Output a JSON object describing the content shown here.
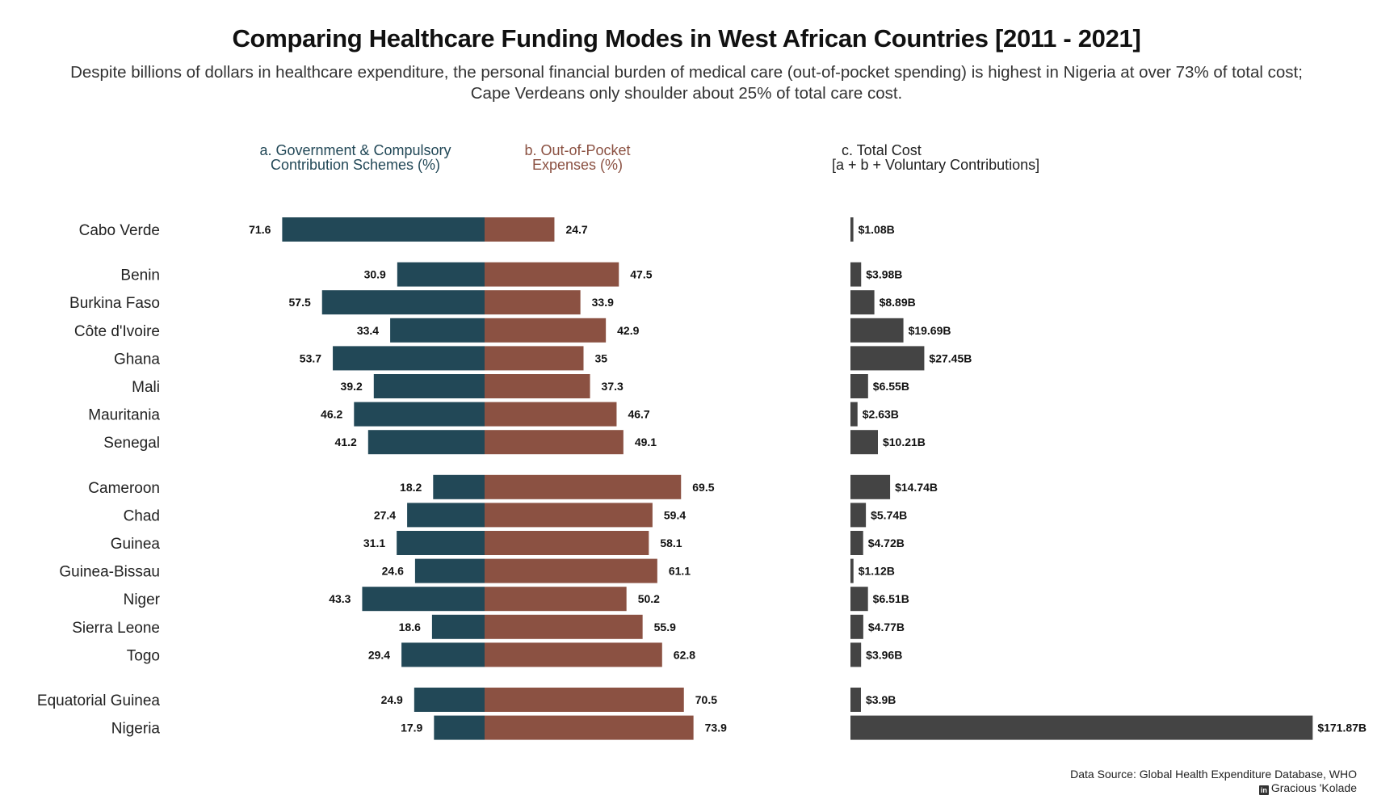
{
  "title": "Comparing Healthcare Funding Modes in West African Countries [2011 - 2021]",
  "subtitle_line1": "Despite billions of dollars in healthcare expenditure, the personal financial burden of medical care (out-of-pocket spending) is highest in Nigeria at over 73% of total cost;",
  "subtitle_line2": "Cape Verdeans only shoulder about 25% of total care cost.",
  "column_headers": {
    "a_line1": "a. Government & Compulsory",
    "a_line2": "Contribution Schemes (%)",
    "b_line1": "b. Out-of-Pocket",
    "b_line2": "Expenses (%)",
    "c_line1": "c. Total Cost",
    "c_line2": "[a + b + Voluntary Contributions]"
  },
  "source": {
    "line1": "Data Source: Global Health Expenditure Database, WHO",
    "line2": "Gracious 'Kolade",
    "icon": "linkedin-icon"
  },
  "colors": {
    "government": "#224857",
    "out_of_pocket": "#8b5142",
    "total": "#444444"
  },
  "chart_data": {
    "type": "bar",
    "title": "Comparing Healthcare Funding Modes in West African Countries [2011 - 2021]",
    "groups": [
      [
        "Cabo Verde"
      ],
      [
        "Benin",
        "Burkina Faso",
        "Côte d'Ivoire",
        "Ghana",
        "Mali",
        "Mauritania",
        "Senegal"
      ],
      [
        "Cameroon",
        "Chad",
        "Guinea",
        "Guinea-Bissau",
        "Niger",
        "Sierra Leone",
        "Togo"
      ],
      [
        "Equatorial Guinea",
        "Nigeria"
      ]
    ],
    "categories": [
      "Cabo Verde",
      "Benin",
      "Burkina Faso",
      "Côte d'Ivoire",
      "Ghana",
      "Mali",
      "Mauritania",
      "Senegal",
      "Cameroon",
      "Chad",
      "Guinea",
      "Guinea-Bissau",
      "Niger",
      "Sierra Leone",
      "Togo",
      "Equatorial Guinea",
      "Nigeria"
    ],
    "series": [
      {
        "name": "a. Government & Compulsory Contribution Schemes (%)",
        "values": [
          71.6,
          30.9,
          57.5,
          33.4,
          53.7,
          39.2,
          46.2,
          41.2,
          18.2,
          27.4,
          31.1,
          24.6,
          43.3,
          18.6,
          29.4,
          24.9,
          17.9
        ]
      },
      {
        "name": "b. Out-of-Pocket Expenses (%)",
        "values": [
          24.7,
          47.5,
          33.9,
          42.9,
          35,
          37.3,
          46.7,
          49.1,
          69.5,
          59.4,
          58.1,
          61.1,
          50.2,
          55.9,
          62.8,
          70.5,
          73.9
        ]
      },
      {
        "name": "c. Total Cost [a + b + Voluntary Contributions]",
        "values": [
          1.08,
          3.98,
          8.89,
          19.69,
          27.45,
          6.55,
          2.63,
          10.21,
          14.74,
          5.74,
          4.72,
          1.12,
          6.51,
          4.77,
          3.96,
          3.9,
          171.87
        ],
        "labels": [
          "$1.08B",
          "$3.98B",
          "$8.89B",
          "$19.69B",
          "$27.45B",
          "$6.55B",
          "$2.63B",
          "$10.21B",
          "$14.74B",
          "$5.74B",
          "$4.72B",
          "$1.12B",
          "$6.51B",
          "$4.77B",
          "$3.96B",
          "$3.9B",
          "$171.87B"
        ]
      }
    ],
    "legend": "none",
    "grid": false
  }
}
